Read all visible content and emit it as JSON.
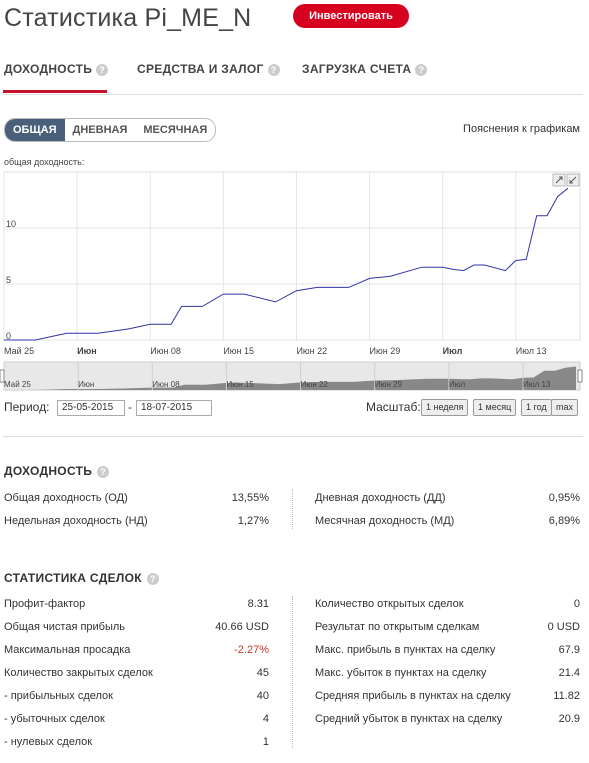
{
  "header": {
    "title": "Статистика Pi_ME_N",
    "invest_label": "Инвестировать"
  },
  "tabs": [
    {
      "label": "ДОХОДНОСТЬ"
    },
    {
      "label": "СРЕДСТВА И ЗАЛОГ"
    },
    {
      "label": "ЗАГРУЗКА СЧЕТА"
    }
  ],
  "chart_controls": {
    "modes": [
      "ОБЩАЯ",
      "ДНЕВНАЯ",
      "МЕСЯЧНАЯ"
    ],
    "active_mode": "ОБЩАЯ",
    "hint": "Пояснения к графикам",
    "ylabel": "общая доходность:"
  },
  "chart_data": {
    "type": "line",
    "x": [
      "2015-05-25",
      "2015-05-28",
      "2015-05-31",
      "2015-06-03",
      "2015-06-06",
      "2015-06-08",
      "2015-06-10",
      "2015-06-11",
      "2015-06-13",
      "2015-06-15",
      "2015-06-17",
      "2015-06-20",
      "2015-06-22",
      "2015-06-24",
      "2015-06-27",
      "2015-06-29",
      "2015-07-01",
      "2015-07-04",
      "2015-07-06",
      "2015-07-07",
      "2015-07-08",
      "2015-07-09",
      "2015-07-10",
      "2015-07-12",
      "2015-07-13",
      "2015-07-14",
      "2015-07-15",
      "2015-07-16",
      "2015-07-17",
      "2015-07-18"
    ],
    "y": [
      0.0,
      0.0,
      0.6,
      0.6,
      1.0,
      1.4,
      1.4,
      3.0,
      3.0,
      4.1,
      4.1,
      3.4,
      4.4,
      4.7,
      4.7,
      5.5,
      5.7,
      6.5,
      6.5,
      6.3,
      6.2,
      6.7,
      6.7,
      6.2,
      7.1,
      7.2,
      11.1,
      11.1,
      12.8,
      13.55
    ],
    "ylim": [
      0,
      15
    ],
    "yticks": [
      "0",
      "5",
      "10"
    ],
    "xticks": [
      "Май 25",
      "Июн",
      "Июн 08",
      "Июн 15",
      "Июн 22",
      "Июн 29",
      "Июл",
      "Июл 13"
    ],
    "xticks_bold": [
      false,
      true,
      false,
      false,
      false,
      false,
      true,
      false
    ],
    "navigator_xticks": [
      "Май 25",
      "Июн",
      "Июн 08",
      "Июн 15",
      "Июн 22",
      "Июн 29",
      "Июл",
      "Июл 13"
    ],
    "grid": true,
    "line_color": "#3333aa"
  },
  "range": {
    "period_label": "Период:",
    "from": "25-05-2015",
    "dash": "-",
    "to": "18-07-2015",
    "scale_label": "Масштаб:",
    "buttons": [
      "1 неделя",
      "1 месяц",
      "1 год",
      "max"
    ]
  },
  "returns": {
    "title": "ДОХОДНОСТЬ",
    "left": [
      {
        "label": "Общая доходность (ОД)",
        "value": "13,55%"
      },
      {
        "label": "Недельная доходность (НД)",
        "value": "1,27%"
      }
    ],
    "right": [
      {
        "label": "Дневная доходность (ДД)",
        "value": "0,95%"
      },
      {
        "label": "Месячная доходность (МД)",
        "value": "6,89%"
      }
    ]
  },
  "trades": {
    "title": "СТАТИСТИКА СДЕЛОК",
    "left": [
      {
        "label": "Профит-фактор",
        "value": "8.31"
      },
      {
        "label": "Общая чистая прибыль",
        "value": "40.66 USD"
      },
      {
        "label": "Максимальная просадка",
        "value": "-2.27%"
      },
      {
        "label": "Количество закрытых сделок",
        "value": "45"
      },
      {
        "label": "- прибыльных сделок",
        "value": "40"
      },
      {
        "label": "- убыточных сделок",
        "value": "4"
      },
      {
        "label": "- нулевых сделок",
        "value": "1"
      }
    ],
    "right": [
      {
        "label": "Количество открытых сделок",
        "value": "0"
      },
      {
        "label": "Результат по открытым сделкам",
        "value": "0 USD"
      },
      {
        "label": "Макс. прибыль в пунктах на сделку",
        "value": "67.9"
      },
      {
        "label": "Макс. убыток в пунктах на сделку",
        "value": "21.4"
      },
      {
        "label": "Средняя прибыль в пунктах на сделку",
        "value": "11.82"
      },
      {
        "label": "Средний убыток в пунктах на сделку",
        "value": "20.9"
      }
    ]
  },
  "colors": {
    "accent": "#d8001f",
    "tab_underline": "#c8102e",
    "active_segment": "#4a5f7a",
    "negative": "#c0392b"
  }
}
